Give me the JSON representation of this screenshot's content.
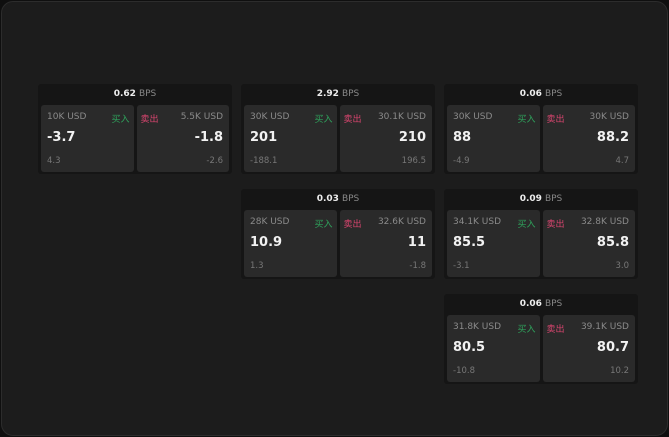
{
  "buy_label": "买入",
  "sell_label": "卖出",
  "unit": "BPS",
  "colors": {
    "buy": "#2fa35c",
    "sell": "#d8456f"
  },
  "cards": [
    {
      "spread": "0.62",
      "buy": {
        "size": "10K USD",
        "price": "-3.7",
        "change": "4.3"
      },
      "sell": {
        "size": "5.5K USD",
        "price": "-1.8",
        "change": "-2.6"
      }
    },
    {
      "spread": "2.92",
      "buy": {
        "size": "30K USD",
        "price": "201",
        "change": "-188.1"
      },
      "sell": {
        "size": "30.1K USD",
        "price": "210",
        "change": "196.5"
      }
    },
    {
      "spread": "0.06",
      "buy": {
        "size": "30K USD",
        "price": "88",
        "change": "-4.9"
      },
      "sell": {
        "size": "30K USD",
        "price": "88.2",
        "change": "4.7"
      }
    },
    {
      "spread": "0.03",
      "buy": {
        "size": "28K USD",
        "price": "10.9",
        "change": "1.3"
      },
      "sell": {
        "size": "32.6K USD",
        "price": "11",
        "change": "-1.8"
      }
    },
    {
      "spread": "0.09",
      "buy": {
        "size": "34.1K USD",
        "price": "85.5",
        "change": "-3.1"
      },
      "sell": {
        "size": "32.8K USD",
        "price": "85.8",
        "change": "3.0"
      }
    },
    {
      "spread": "0.06",
      "buy": {
        "size": "31.8K USD",
        "price": "80.5",
        "change": "-10.8"
      },
      "sell": {
        "size": "39.1K USD",
        "price": "80.7",
        "change": "10.2"
      }
    }
  ]
}
